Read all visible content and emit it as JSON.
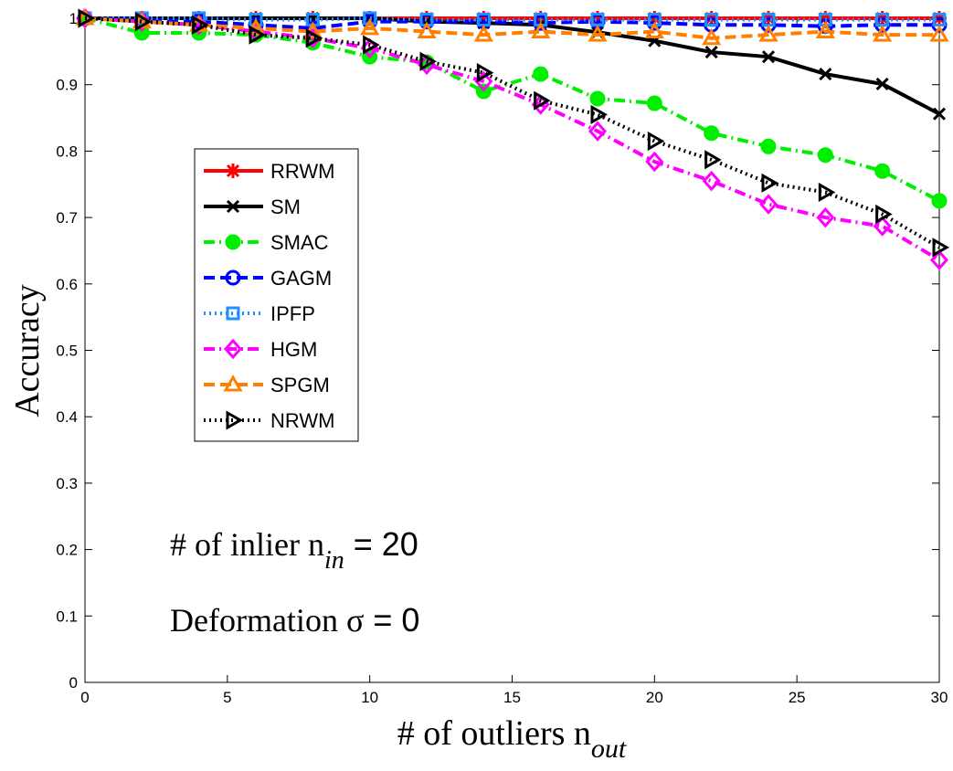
{
  "chart_data": {
    "type": "line",
    "ylabel": "Accuracy",
    "xlabel": {
      "text": "# of outliers n",
      "subscript": "out"
    },
    "annotations": [
      {
        "text": "# of inlier n",
        "subscript": "in",
        "suffix": " = 20"
      },
      {
        "text": "Deformation σ",
        "suffix": " = 0"
      }
    ],
    "x": [
      0,
      2,
      4,
      6,
      8,
      10,
      12,
      14,
      16,
      18,
      20,
      22,
      24,
      26,
      28,
      30
    ],
    "xlim": [
      0,
      30
    ],
    "xticks": [
      0,
      5,
      10,
      15,
      20,
      25,
      30
    ],
    "ylim": [
      0,
      1
    ],
    "yticks": [
      0,
      0.1,
      0.2,
      0.3,
      0.4,
      0.5,
      0.6,
      0.7,
      0.8,
      0.9,
      1
    ],
    "legend": "upper-left",
    "series": [
      {
        "name": "RRWM",
        "color": "#ff0000",
        "dash": "solid",
        "marker": "star",
        "values": [
          1,
          1,
          1,
          1,
          1,
          1,
          1,
          1,
          1,
          1,
          1,
          1,
          1,
          1,
          1,
          1
        ]
      },
      {
        "name": "SM",
        "color": "#000000",
        "dash": "solid",
        "marker": "x",
        "values": [
          1,
          1,
          1,
          1,
          1,
          1,
          0.995,
          0.993,
          0.99,
          0.979,
          0.966,
          0.949,
          0.942,
          0.916,
          0.901,
          0.856
        ]
      },
      {
        "name": "SMAC",
        "color": "#00ee00",
        "dash": "dashdot",
        "marker": "dot",
        "values": [
          1,
          0.978,
          0.978,
          0.975,
          0.963,
          0.942,
          0.934,
          0.89,
          0.916,
          0.879,
          0.872,
          0.827,
          0.807,
          0.794,
          0.77,
          0.725
        ]
      },
      {
        "name": "GAGM",
        "color": "#0000ff",
        "dash": "dashed",
        "marker": "circle",
        "values": [
          1,
          0.998,
          0.995,
          0.99,
          0.985,
          0.995,
          0.995,
          0.995,
          0.993,
          0.995,
          0.993,
          0.99,
          0.99,
          0.988,
          0.99,
          0.99
        ]
      },
      {
        "name": "IPFP",
        "color": "#1e90ff",
        "dash": "dotted",
        "marker": "square",
        "values": [
          1,
          1,
          1,
          0.998,
          0.998,
          1,
          0.998,
          0.998,
          0.998,
          0.998,
          0.998,
          0.998,
          0.998,
          0.998,
          0.998,
          0.998
        ]
      },
      {
        "name": "HGM",
        "color": "#ff00ff",
        "dash": "dashdot",
        "marker": "diamond",
        "values": [
          1,
          0.995,
          0.99,
          0.98,
          0.97,
          0.955,
          0.93,
          0.905,
          0.87,
          0.83,
          0.784,
          0.755,
          0.72,
          0.7,
          0.687,
          0.636
        ]
      },
      {
        "name": "SPGM",
        "color": "#ff8000",
        "dash": "dashed",
        "marker": "triangle",
        "values": [
          1,
          0.995,
          0.99,
          0.985,
          0.98,
          0.985,
          0.98,
          0.975,
          0.98,
          0.975,
          0.98,
          0.97,
          0.975,
          0.98,
          0.975,
          0.975
        ]
      },
      {
        "name": "NRWM",
        "color": "#000000",
        "dash": "dotted",
        "marker": "triangle-right",
        "values": [
          1,
          0.995,
          0.99,
          0.975,
          0.97,
          0.96,
          0.935,
          0.918,
          0.876,
          0.855,
          0.815,
          0.787,
          0.752,
          0.738,
          0.705,
          0.655
        ]
      }
    ]
  }
}
